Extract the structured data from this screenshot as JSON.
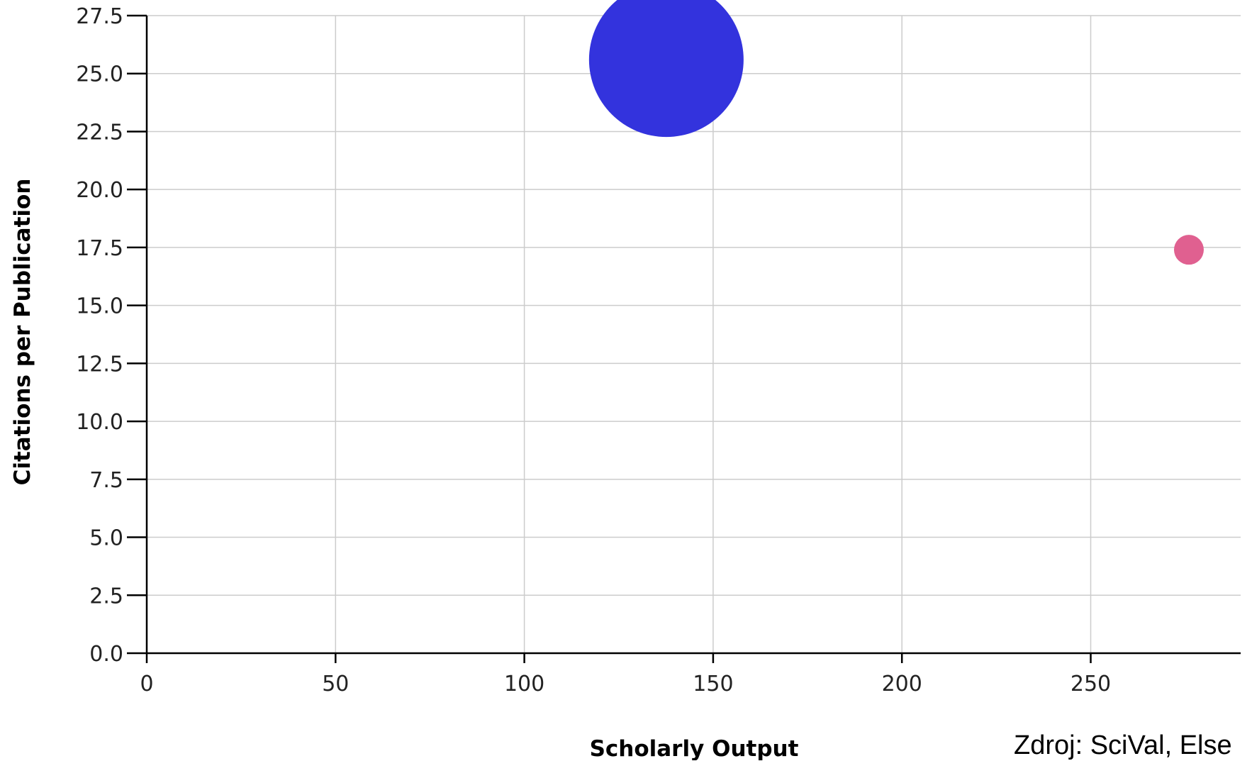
{
  "chart_data": {
    "type": "scatter",
    "xlabel": "Scholarly Output",
    "ylabel": "Citations per Publication",
    "xlim": [
      0,
      290
    ],
    "ylim": [
      0,
      27.5
    ],
    "x_ticks": [
      "0",
      "50",
      "100",
      "150",
      "200",
      "250"
    ],
    "y_ticks": [
      "0.0",
      "2.5",
      "5.0",
      "7.5",
      "10.0",
      "12.5",
      "15.0",
      "17.5",
      "20.0",
      "22.5",
      "25.0",
      "27.5"
    ],
    "grid": true,
    "points": [
      {
        "x": 137.6,
        "y": 25.6,
        "color": "#3333dd",
        "size": "large"
      },
      {
        "x": 276,
        "y": 17.4,
        "color": "#e06090",
        "size": "small"
      }
    ]
  },
  "source_note": "Zdroj: SciVal, Else"
}
